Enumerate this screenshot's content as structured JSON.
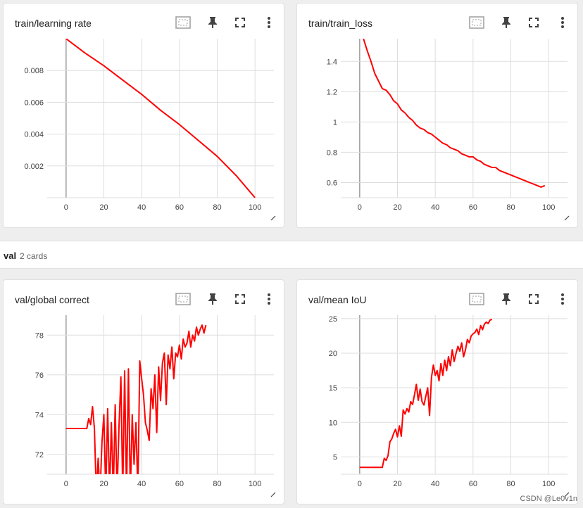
{
  "section": {
    "name": "val",
    "count": "2 cards"
  },
  "watermark": "CSDN @Le0v1n",
  "colors": {
    "line": "#ff0000",
    "grid": "#dddddd",
    "axis": "#9e9e9e"
  },
  "toolbar_icons": [
    "fit-domain-icon",
    "pin-icon",
    "fullscreen-icon",
    "more-vert-icon"
  ],
  "cards": [
    {
      "title": "train/learning rate",
      "chart_data": {
        "type": "line",
        "x_ticks": [
          0,
          20,
          40,
          60,
          80,
          100
        ],
        "y_ticks": [
          0.002,
          0.004,
          0.006,
          0.008
        ],
        "y_tick_labels": [
          "0.002",
          "0.004",
          "0.006",
          "0.008"
        ],
        "xlim": [
          -10,
          110
        ],
        "ylim": [
          0,
          0.01
        ],
        "series": [
          {
            "points": [
              [
                0,
                0.01
              ],
              [
                10,
                0.0091
              ],
              [
                20,
                0.0083
              ],
              [
                30,
                0.0074
              ],
              [
                40,
                0.0065
              ],
              [
                50,
                0.0055
              ],
              [
                60,
                0.0046
              ],
              [
                70,
                0.0036
              ],
              [
                80,
                0.0026
              ],
              [
                90,
                0.0014
              ],
              [
                100,
                0
              ]
            ]
          }
        ]
      }
    },
    {
      "title": "train/train_loss",
      "chart_data": {
        "type": "line",
        "x_ticks": [
          0,
          20,
          40,
          60,
          80,
          100
        ],
        "y_ticks": [
          0.6,
          0.8,
          1,
          1.2,
          1.4
        ],
        "y_tick_labels": [
          "0.6",
          "0.8",
          "1",
          "1.2",
          "1.4"
        ],
        "xlim": [
          -10,
          110
        ],
        "ylim": [
          0.5,
          1.55
        ],
        "series": [
          {
            "points": [
              [
                2,
                1.55
              ],
              [
                4,
                1.47
              ],
              [
                6,
                1.4
              ],
              [
                8,
                1.32
              ],
              [
                10,
                1.27
              ],
              [
                12,
                1.22
              ],
              [
                14,
                1.21
              ],
              [
                16,
                1.18
              ],
              [
                18,
                1.14
              ],
              [
                20,
                1.12
              ],
              [
                22,
                1.08
              ],
              [
                24,
                1.06
              ],
              [
                26,
                1.03
              ],
              [
                28,
                1.01
              ],
              [
                30,
                0.98
              ],
              [
                32,
                0.96
              ],
              [
                34,
                0.95
              ],
              [
                36,
                0.93
              ],
              [
                38,
                0.92
              ],
              [
                40,
                0.9
              ],
              [
                42,
                0.88
              ],
              [
                44,
                0.86
              ],
              [
                46,
                0.85
              ],
              [
                48,
                0.83
              ],
              [
                50,
                0.82
              ],
              [
                52,
                0.81
              ],
              [
                54,
                0.79
              ],
              [
                56,
                0.78
              ],
              [
                58,
                0.77
              ],
              [
                60,
                0.77
              ],
              [
                62,
                0.75
              ],
              [
                64,
                0.74
              ],
              [
                66,
                0.72
              ],
              [
                68,
                0.71
              ],
              [
                70,
                0.7
              ],
              [
                72,
                0.7
              ],
              [
                74,
                0.68
              ],
              [
                76,
                0.67
              ],
              [
                78,
                0.66
              ],
              [
                80,
                0.65
              ],
              [
                82,
                0.64
              ],
              [
                84,
                0.63
              ],
              [
                86,
                0.62
              ],
              [
                88,
                0.61
              ],
              [
                90,
                0.6
              ],
              [
                92,
                0.59
              ],
              [
                94,
                0.58
              ],
              [
                96,
                0.57
              ],
              [
                98,
                0.58
              ]
            ]
          }
        ]
      }
    },
    {
      "title": "val/global correct",
      "chart_data": {
        "type": "line",
        "x_ticks": [
          0,
          20,
          40,
          60,
          80,
          100
        ],
        "y_ticks": [
          72,
          74,
          76,
          78
        ],
        "y_tick_labels": [
          "72",
          "74",
          "76",
          "78"
        ],
        "xlim": [
          -10,
          110
        ],
        "ylim": [
          71,
          79
        ],
        "series": [
          {
            "points": [
              [
                0,
                73.3
              ],
              [
                11,
                73.3
              ],
              [
                12,
                73.8
              ],
              [
                13,
                73.5
              ],
              [
                14,
                74.4
              ],
              [
                15,
                73.3
              ],
              [
                16,
                70
              ],
              [
                17,
                71.8
              ],
              [
                18,
                70
              ],
              [
                19,
                72.6
              ],
              [
                20,
                74.0
              ],
              [
                21,
                70
              ],
              [
                22,
                74.3
              ],
              [
                23,
                70
              ],
              [
                24,
                73.6
              ],
              [
                25,
                70
              ],
              [
                26,
                74.5
              ],
              [
                27,
                70
              ],
              [
                28,
                73.4
              ],
              [
                29,
                75.9
              ],
              [
                30,
                70
              ],
              [
                31,
                76.2
              ],
              [
                32,
                70
              ],
              [
                33,
                76.3
              ],
              [
                34,
                70
              ],
              [
                35,
                74.0
              ],
              [
                36,
                71.5
              ],
              [
                37,
                73.6
              ],
              [
                38,
                70
              ],
              [
                39,
                76.7
              ],
              [
                40,
                75.8
              ],
              [
                41,
                75.0
              ],
              [
                42,
                73.6
              ],
              [
                43,
                73.2
              ],
              [
                44,
                72.7
              ],
              [
                45,
                75.3
              ],
              [
                46,
                74.3
              ],
              [
                47,
                76.0
              ],
              [
                48,
                73.1
              ],
              [
                49,
                76.4
              ],
              [
                50,
                74.7
              ],
              [
                51,
                76.6
              ],
              [
                52,
                77.1
              ],
              [
                53,
                74.5
              ],
              [
                54,
                77.0
              ],
              [
                55,
                76.3
              ],
              [
                56,
                77.4
              ],
              [
                57,
                75.8
              ],
              [
                58,
                77.1
              ],
              [
                59,
                76.9
              ],
              [
                60,
                77.5
              ],
              [
                61,
                76.8
              ],
              [
                62,
                77.8
              ],
              [
                63,
                77.4
              ],
              [
                64,
                77.6
              ],
              [
                65,
                78.2
              ],
              [
                66,
                77.4
              ],
              [
                67,
                78.0
              ],
              [
                68,
                77.7
              ],
              [
                69,
                78.4
              ],
              [
                70,
                78.0
              ],
              [
                71,
                78.3
              ],
              [
                72,
                78.5
              ],
              [
                73,
                78.1
              ],
              [
                74,
                78.5
              ]
            ]
          }
        ]
      }
    },
    {
      "title": "val/mean IoU",
      "chart_data": {
        "type": "line",
        "x_ticks": [
          0,
          20,
          40,
          60,
          80,
          100
        ],
        "y_ticks": [
          5,
          10,
          15,
          20,
          25
        ],
        "y_tick_labels": [
          "5",
          "10",
          "15",
          "20",
          "25"
        ],
        "xlim": [
          -10,
          110
        ],
        "ylim": [
          2.5,
          25.5
        ],
        "series": [
          {
            "points": [
              [
                0,
                3.5
              ],
              [
                12,
                3.5
              ],
              [
                13,
                4.8
              ],
              [
                14,
                4.5
              ],
              [
                15,
                5.2
              ],
              [
                16,
                7.2
              ],
              [
                17,
                7.6
              ],
              [
                18,
                8.4
              ],
              [
                19,
                9.0
              ],
              [
                20,
                7.9
              ],
              [
                21,
                9.5
              ],
              [
                22,
                8.0
              ],
              [
                23,
                11.8
              ],
              [
                24,
                11.2
              ],
              [
                25,
                12.0
              ],
              [
                26,
                11.5
              ],
              [
                27,
                13.0
              ],
              [
                28,
                12.6
              ],
              [
                29,
                14.0
              ],
              [
                30,
                15.5
              ],
              [
                31,
                13.2
              ],
              [
                32,
                14.8
              ],
              [
                33,
                13.0
              ],
              [
                34,
                12.5
              ],
              [
                35,
                13.8
              ],
              [
                36,
                15.0
              ],
              [
                37,
                11.0
              ],
              [
                38,
                16.5
              ],
              [
                39,
                18.3
              ],
              [
                40,
                16.8
              ],
              [
                41,
                17.5
              ],
              [
                42,
                16.0
              ],
              [
                43,
                18.5
              ],
              [
                44,
                16.8
              ],
              [
                45,
                19.0
              ],
              [
                46,
                17.5
              ],
              [
                47,
                19.5
              ],
              [
                48,
                18.2
              ],
              [
                49,
                20.5
              ],
              [
                50,
                18.8
              ],
              [
                51,
                20.0
              ],
              [
                52,
                21.0
              ],
              [
                53,
                20.3
              ],
              [
                54,
                21.5
              ],
              [
                55,
                19.5
              ],
              [
                56,
                20.5
              ],
              [
                57,
                22.0
              ],
              [
                58,
                21.5
              ],
              [
                59,
                22.5
              ],
              [
                60,
                22.8
              ],
              [
                61,
                23.0
              ],
              [
                62,
                23.5
              ],
              [
                63,
                22.7
              ],
              [
                64,
                24.0
              ],
              [
                65,
                23.4
              ],
              [
                66,
                24.2
              ],
              [
                67,
                24.5
              ],
              [
                68,
                24.3
              ],
              [
                69,
                24.8
              ],
              [
                70,
                24.9
              ]
            ]
          }
        ]
      }
    }
  ]
}
